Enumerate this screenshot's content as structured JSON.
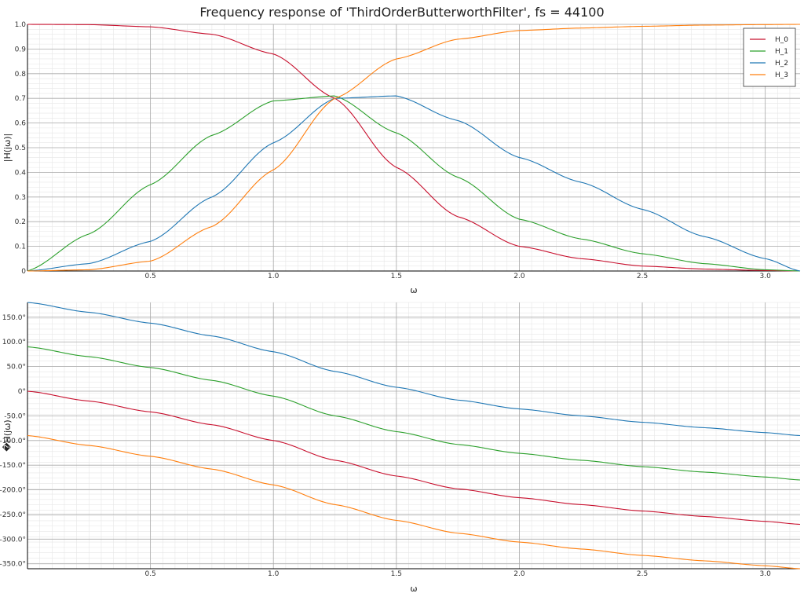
{
  "title": "Frequency response of 'ThirdOrderButterworthFilter', fs = 44100",
  "series_colors": {
    "H_0": "#c8102e",
    "H_1": "#2ca02c",
    "H_2": "#1f77b4",
    "H_3": "#ff7f0e"
  },
  "chart_data": [
    {
      "type": "line",
      "panel": "magnitude",
      "title": "",
      "xlabel": "ω",
      "ylabel": "|H(jω)|",
      "xlim": [
        0,
        3.1416
      ],
      "ylim": [
        0,
        1.0
      ],
      "x_ticks": [
        0.5,
        1.0,
        1.5,
        2.0,
        2.5,
        3.0
      ],
      "x_tick_labels": [
        "0.5",
        "1.0",
        "1.5",
        "2.0",
        "2.5",
        "3.0"
      ],
      "y_ticks": [
        0,
        0.1,
        0.2,
        0.3,
        0.4,
        0.5,
        0.6,
        0.7,
        0.8,
        0.9,
        1.0
      ],
      "y_tick_labels": [
        "0",
        "0.1",
        "0.2",
        "0.3",
        "0.4",
        "0.5",
        "0.6",
        "0.7",
        "0.8",
        "0.9",
        "1.0"
      ],
      "grid": true,
      "legend": "top-right",
      "x": [
        0,
        0.25,
        0.5,
        0.75,
        1.0,
        1.25,
        1.5,
        1.75,
        2.0,
        2.25,
        2.5,
        2.75,
        3.0,
        3.1416
      ],
      "series": [
        {
          "name": "H_0",
          "values": [
            1.0,
            0.999,
            0.99,
            0.96,
            0.88,
            0.7,
            0.42,
            0.22,
            0.1,
            0.05,
            0.02,
            0.008,
            0.002,
            0.0
          ]
        },
        {
          "name": "H_1",
          "values": [
            0.0,
            0.15,
            0.35,
            0.55,
            0.69,
            0.71,
            0.56,
            0.38,
            0.21,
            0.13,
            0.07,
            0.03,
            0.005,
            0.0
          ]
        },
        {
          "name": "H_2",
          "values": [
            0.0,
            0.03,
            0.12,
            0.3,
            0.52,
            0.7,
            0.71,
            0.61,
            0.46,
            0.36,
            0.25,
            0.14,
            0.05,
            0.0
          ]
        },
        {
          "name": "H_3",
          "values": [
            0.0,
            0.005,
            0.04,
            0.18,
            0.41,
            0.7,
            0.86,
            0.94,
            0.975,
            0.985,
            0.992,
            0.997,
            0.999,
            1.0
          ]
        }
      ]
    },
    {
      "type": "line",
      "panel": "phase",
      "title": "",
      "xlabel": "ω",
      "ylabel": "�H(jω)",
      "xlim": [
        0,
        3.1416
      ],
      "ylim": [
        -360,
        180
      ],
      "x_ticks": [
        0.5,
        1.0,
        1.5,
        2.0,
        2.5,
        3.0
      ],
      "x_tick_labels": [
        "0.5",
        "1.0",
        "1.5",
        "2.0",
        "2.5",
        "3.0"
      ],
      "y_ticks": [
        150,
        100,
        50,
        0,
        -50,
        -100,
        -150,
        -200,
        -250,
        -300,
        -350
      ],
      "y_tick_labels": [
        "150.0°",
        "100.0°",
        "50.0°",
        "0°",
        "-50.0°",
        "-100.0°",
        "-150.0°",
        "-200.0°",
        "-250.0°",
        "-300.0°",
        "-350.0°"
      ],
      "grid": true,
      "x": [
        0,
        0.25,
        0.5,
        0.75,
        1.0,
        1.25,
        1.5,
        1.75,
        2.0,
        2.25,
        2.5,
        2.75,
        3.0,
        3.1416
      ],
      "series": [
        {
          "name": "H_0",
          "values": [
            0,
            -20,
            -42,
            -68,
            -100,
            -140,
            -172,
            -198,
            -216,
            -230,
            -243,
            -254,
            -264,
            -270
          ]
        },
        {
          "name": "H_1",
          "values": [
            90,
            70,
            48,
            22,
            -10,
            -50,
            -82,
            -108,
            -126,
            -140,
            -153,
            -164,
            -174,
            -180
          ]
        },
        {
          "name": "H_2",
          "values": [
            180,
            160,
            138,
            112,
            80,
            40,
            8,
            -18,
            -36,
            -50,
            -63,
            -74,
            -84,
            -90
          ]
        },
        {
          "name": "H_3",
          "values": [
            -90,
            -110,
            -132,
            -158,
            -190,
            -230,
            -262,
            -288,
            -306,
            -320,
            -333,
            -344,
            -354,
            -360
          ]
        }
      ]
    }
  ]
}
